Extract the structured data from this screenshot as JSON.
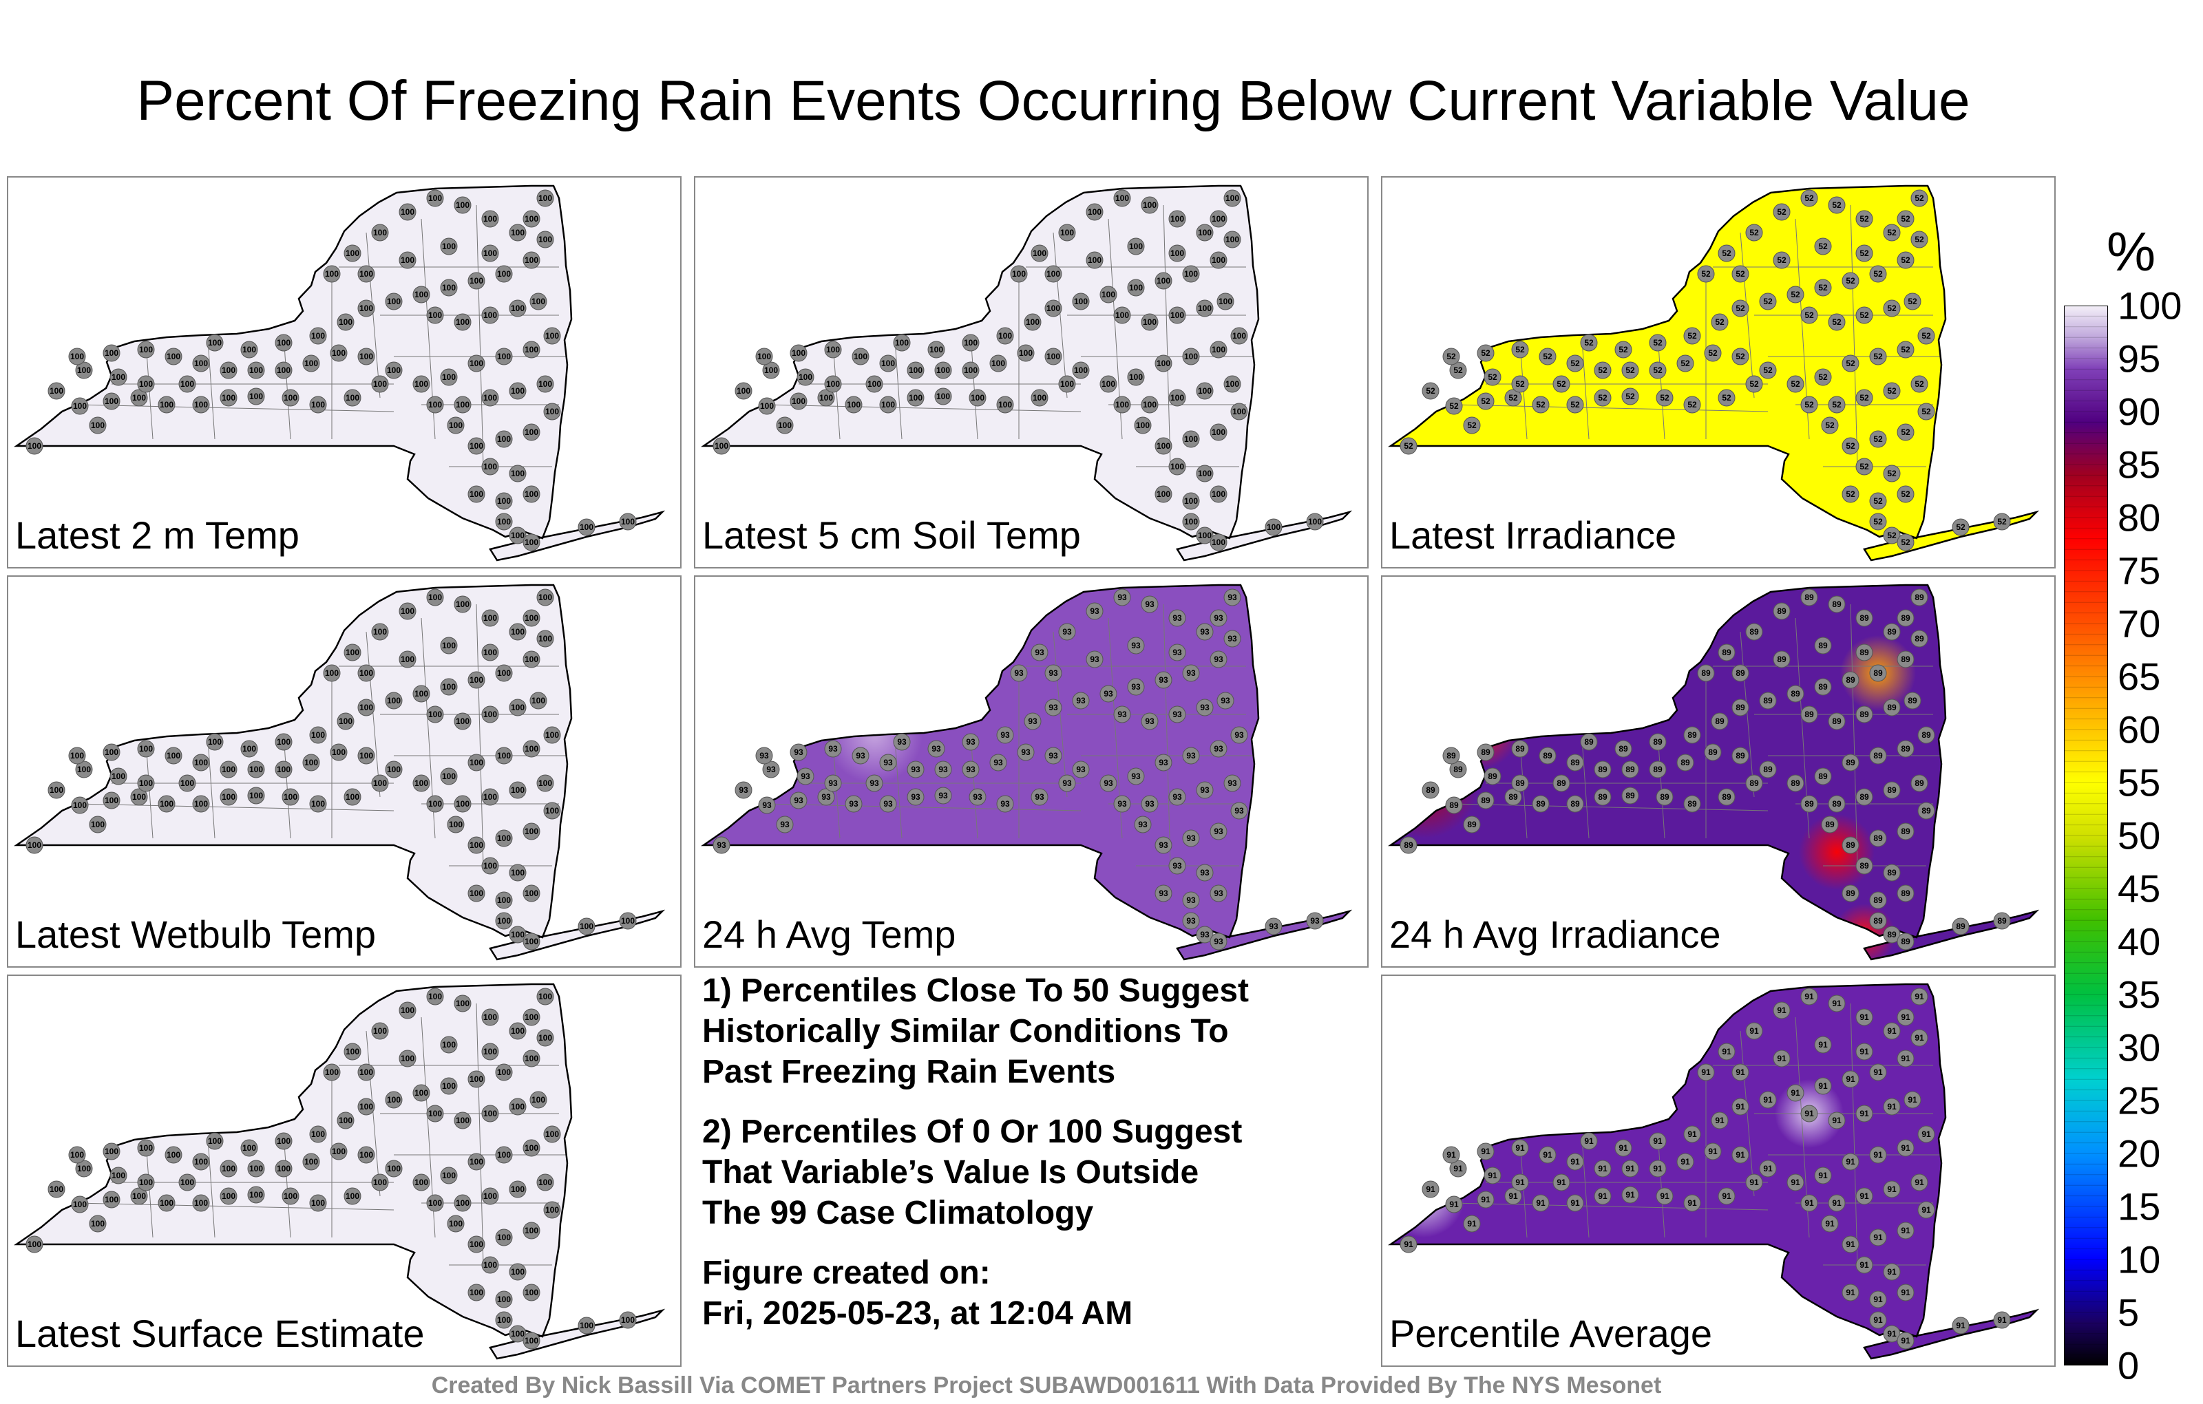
{
  "title": "Percent Of Freezing Rain Events Occurring Below Current Variable Value",
  "panels": [
    {
      "label": "Latest 2 m Temp",
      "fill": "#f1eef6",
      "value": "100"
    },
    {
      "label": "Latest 5 cm Soil Temp",
      "fill": "#f1eef6",
      "value": "100"
    },
    {
      "label": "Latest Irradiance",
      "fill": "#ffff00",
      "value": "52"
    },
    {
      "label": "Latest Wetbulb Temp",
      "fill": "#f1eef6",
      "value": "100"
    },
    {
      "label": "24 h Avg Temp",
      "fill": "#8a4fbf",
      "value": "93"
    },
    {
      "label": "24 h Avg Irradiance",
      "fill": "#5b1a9c",
      "value": "89"
    },
    {
      "label": "Latest Surface Estimate",
      "fill": "#f1eef6",
      "value": "100"
    },
    {
      "label": "Percentile Average",
      "fill": "#6a22ab",
      "value": "91"
    }
  ],
  "notes": {
    "line1": "1) Percentiles Close To 50 Suggest",
    "line2": "Historically Similar Conditions To",
    "line3": "Past Freezing Rain Events",
    "line4": "2) Percentiles Of 0 Or 100 Suggest",
    "line5": "That Variable’s Value Is Outside",
    "line6": "The 99 Case Climatology",
    "line7": "Figure created on:",
    "line8": "Fri, 2025-05-23, at 12:04 AM"
  },
  "footer": "Created By Nick Bassill Via COMET Partners Project SUBAWD001611 With Data Provided By The NYS Mesonet",
  "colorbar": {
    "title": "%",
    "ticks": [
      "0",
      "5",
      "10",
      "15",
      "20",
      "25",
      "30",
      "35",
      "40",
      "45",
      "50",
      "55",
      "60",
      "65",
      "70",
      "75",
      "80",
      "85",
      "90",
      "95",
      "100"
    ]
  }
}
